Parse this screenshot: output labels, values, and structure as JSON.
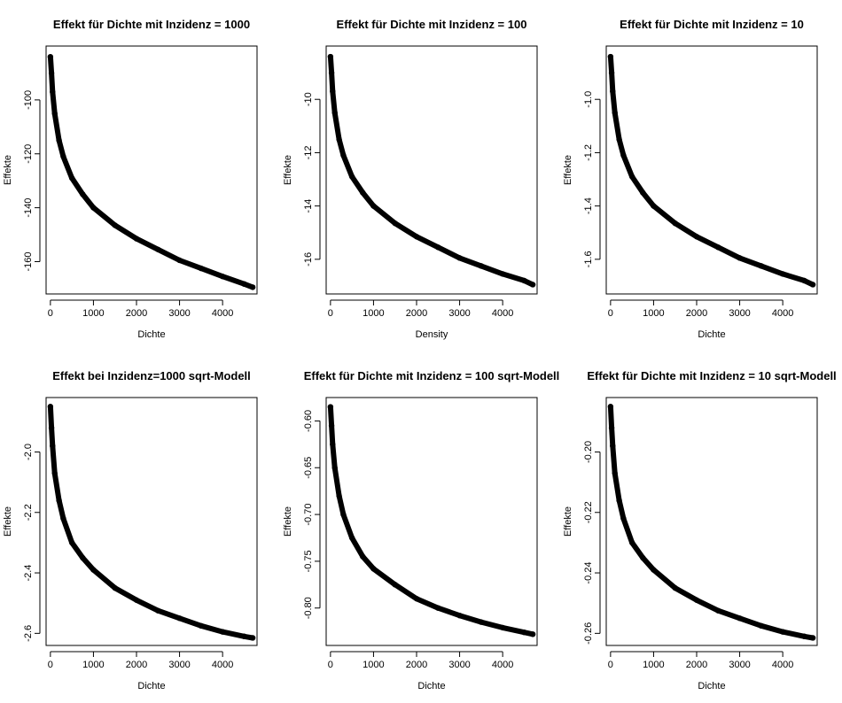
{
  "chart_data": [
    {
      "type": "scatter",
      "title": "Effekt für Dichte mit Inzidenz = 1000",
      "xlabel": "Dichte",
      "ylabel": "Effekte",
      "xlim": [
        -100,
        4800
      ],
      "ylim": [
        -172,
        -80
      ],
      "xticks": [
        0,
        1000,
        2000,
        3000,
        4000
      ],
      "yticks": [
        -100,
        -120,
        -140,
        -160
      ],
      "yticklabels": [
        "-100",
        "-120",
        "-140",
        "-160"
      ],
      "series": [
        {
          "x": [
            0,
            25,
            50,
            100,
            200,
            300,
            500,
            750,
            1000,
            1500,
            2000,
            2500,
            3000,
            3500,
            4000,
            4500,
            4700
          ],
          "y": [
            -84,
            -90,
            -97,
            -105,
            -115,
            -121,
            -129,
            -135,
            -140,
            -146.5,
            -151.5,
            -155.5,
            -159.5,
            -162.5,
            -165.5,
            -168.3,
            -169.5
          ]
        }
      ]
    },
    {
      "type": "scatter",
      "title": "Effekt für Dichte mit Inzidenz = 100",
      "xlabel": "Density",
      "ylabel": "Effekte",
      "xlim": [
        -100,
        4800
      ],
      "ylim": [
        -17.3,
        -8.0
      ],
      "xticks": [
        0,
        1000,
        2000,
        3000,
        4000
      ],
      "yticks": [
        -10,
        -12,
        -14,
        -16
      ],
      "yticklabels": [
        "-10",
        "-12",
        "-14",
        "-16"
      ],
      "series": [
        {
          "x": [
            0,
            25,
            50,
            100,
            200,
            300,
            500,
            750,
            1000,
            1500,
            2000,
            2500,
            3000,
            3500,
            4000,
            4500,
            4700
          ],
          "y": [
            -8.4,
            -9.0,
            -9.7,
            -10.5,
            -11.5,
            -12.1,
            -12.9,
            -13.5,
            -14.0,
            -14.65,
            -15.15,
            -15.55,
            -15.95,
            -16.25,
            -16.55,
            -16.8,
            -16.95
          ]
        }
      ]
    },
    {
      "type": "scatter",
      "title": "Effekt für Dichte mit Inzidenz = 10",
      "xlabel": "Dichte",
      "ylabel": "Effekte",
      "xlim": [
        -100,
        4800
      ],
      "ylim": [
        -1.73,
        -0.8
      ],
      "xticks": [
        0,
        1000,
        2000,
        3000,
        4000
      ],
      "yticks": [
        -1.0,
        -1.2,
        -1.4,
        -1.6
      ],
      "yticklabels": [
        "-1.0",
        "-1.2",
        "-1.4",
        "-1.6"
      ],
      "series": [
        {
          "x": [
            0,
            25,
            50,
            100,
            200,
            300,
            500,
            750,
            1000,
            1500,
            2000,
            2500,
            3000,
            3500,
            4000,
            4500,
            4700
          ],
          "y": [
            -0.84,
            -0.9,
            -0.97,
            -1.05,
            -1.15,
            -1.21,
            -1.29,
            -1.35,
            -1.4,
            -1.465,
            -1.515,
            -1.555,
            -1.595,
            -1.625,
            -1.655,
            -1.68,
            -1.695
          ]
        }
      ]
    },
    {
      "type": "scatter",
      "title": "Effekt bei Inzidenz=1000 sqrt-Modell",
      "xlabel": "Dichte",
      "ylabel": "Effekte",
      "xlim": [
        -100,
        4800
      ],
      "ylim": [
        -2.64,
        -1.82
      ],
      "xticks": [
        0,
        1000,
        2000,
        3000,
        4000
      ],
      "yticks": [
        -2.0,
        -2.2,
        -2.4,
        -2.6
      ],
      "yticklabels": [
        "-2.0",
        "-2.2",
        "-2.4",
        "-2.6"
      ],
      "series": [
        {
          "x": [
            0,
            25,
            50,
            100,
            200,
            300,
            500,
            750,
            1000,
            1500,
            2000,
            2500,
            3000,
            3500,
            4000,
            4500,
            4700
          ],
          "y": [
            -1.85,
            -1.92,
            -1.98,
            -2.07,
            -2.16,
            -2.22,
            -2.3,
            -2.35,
            -2.39,
            -2.45,
            -2.49,
            -2.525,
            -2.55,
            -2.575,
            -2.595,
            -2.61,
            -2.615
          ]
        }
      ]
    },
    {
      "type": "scatter",
      "title": "Effekt für Dichte mit Inzidenz = 100 sqrt-Modell",
      "xlabel": "Dichte",
      "ylabel": "Effekte",
      "xlim": [
        -100,
        4800
      ],
      "ylim": [
        -0.84,
        -0.575
      ],
      "xticks": [
        0,
        1000,
        2000,
        3000,
        4000
      ],
      "yticks": [
        -0.6,
        -0.65,
        -0.7,
        -0.75,
        -0.8
      ],
      "yticklabels": [
        "-0.60",
        "-0.65",
        "-0.70",
        "-0.75",
        "-0.80"
      ],
      "series": [
        {
          "x": [
            0,
            25,
            50,
            100,
            200,
            300,
            500,
            750,
            1000,
            1500,
            2000,
            2500,
            3000,
            3500,
            4000,
            4500,
            4700
          ],
          "y": [
            -0.585,
            -0.605,
            -0.625,
            -0.65,
            -0.68,
            -0.7,
            -0.725,
            -0.745,
            -0.758,
            -0.775,
            -0.79,
            -0.8,
            -0.808,
            -0.815,
            -0.821,
            -0.826,
            -0.828
          ]
        }
      ]
    },
    {
      "type": "scatter",
      "title": "Effekt für Dichte mit Inzidenz = 10 sqrt-Modell",
      "xlabel": "Dichte",
      "ylabel": "Effekte",
      "xlim": [
        -100,
        4800
      ],
      "ylim": [
        -0.264,
        -0.182
      ],
      "xticks": [
        0,
        1000,
        2000,
        3000,
        4000
      ],
      "yticks": [
        -0.2,
        -0.22,
        -0.24,
        -0.26
      ],
      "yticklabels": [
        "-0.20",
        "-0.22",
        "-0.24",
        "-0.26"
      ],
      "series": [
        {
          "x": [
            0,
            25,
            50,
            100,
            200,
            300,
            500,
            750,
            1000,
            1500,
            2000,
            2500,
            3000,
            3500,
            4000,
            4500,
            4700
          ],
          "y": [
            -0.185,
            -0.192,
            -0.198,
            -0.207,
            -0.216,
            -0.222,
            -0.23,
            -0.235,
            -0.239,
            -0.245,
            -0.249,
            -0.2525,
            -0.255,
            -0.2575,
            -0.2595,
            -0.261,
            -0.2615
          ]
        }
      ]
    }
  ]
}
